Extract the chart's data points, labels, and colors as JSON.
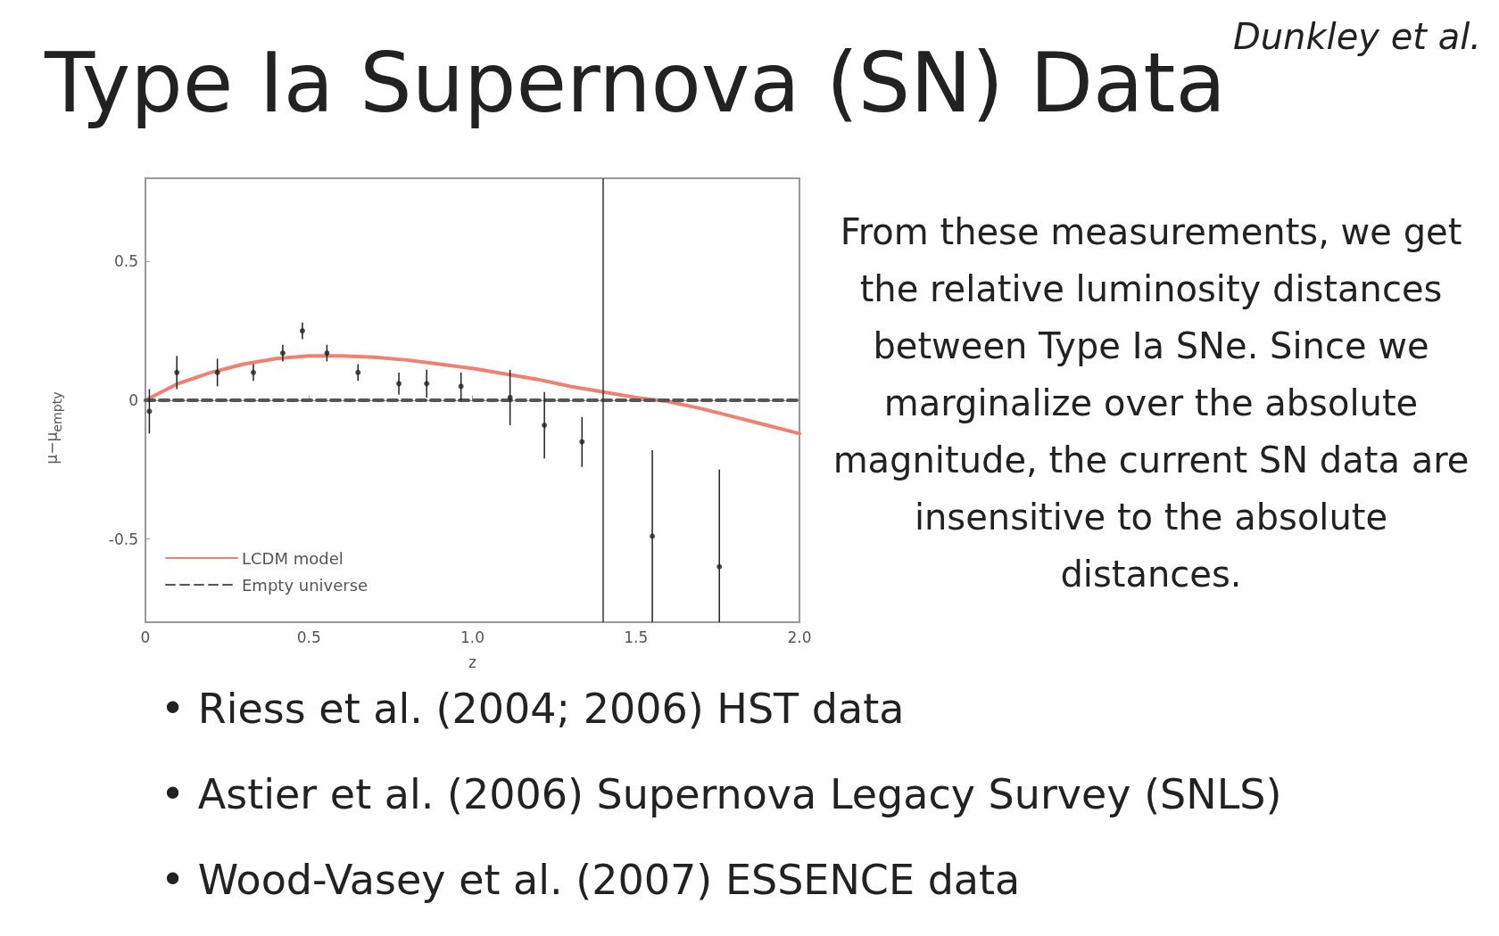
{
  "chart_data": {
    "type": "scatter",
    "title": "Type Ia Supernova (SN) Data",
    "xlabel": "z",
    "ylabel": "μ−μ$_{empty}$",
    "annotations": [
      "Dunkley et al.",
      "From these measurements, we get the relative luminosity distances between Type Ia SNe. Since we marginalize over the absolute magnitude, the current SN data are insensitive to the absolute distances.",
      "• Riess et al. (2004; 2006) HST data",
      "• Astier et al. (2006) Supernova Legacy Survey (SNLS)",
      "• Wood-Vasey et al. (2007) ESSENCE data"
    ],
    "xlim": [
      0,
      2
    ],
    "ylim": [
      -0.8,
      0.8
    ],
    "xticks": [
      0,
      0.5,
      {
        "value": 1,
        "label": "1.0"
      },
      1.5,
      {
        "value": 2,
        "label": "2.0"
      }
    ],
    "yticks": [
      -0.5,
      0,
      0.5
    ],
    "marker": "circle",
    "legend": "bottom left",
    "ref_lines": [
      {
        "axis": "x",
        "value": 1.4,
        "color": "#333333"
      }
    ],
    "series": [
      {
        "color": "#222222",
        "x": [
          0.012,
          0.096,
          0.22,
          0.33,
          0.42,
          0.48,
          0.555,
          0.65,
          0.775,
          0.86,
          0.965,
          1.115,
          1.22,
          1.335,
          1.55,
          1.755
        ],
        "values": [
          -0.04,
          0.1,
          0.1,
          0.1,
          0.17,
          0.25,
          0.17,
          0.1,
          0.06,
          0.06,
          0.05,
          0.01,
          -0.09,
          -0.15,
          -0.49,
          -0.6
        ],
        "errors": [
          0.08,
          0.06,
          0.05,
          0.03,
          0.03,
          0.03,
          0.03,
          0.03,
          0.04,
          0.05,
          0.05,
          0.1,
          0.12,
          0.09,
          0.31,
          [
            -0.8,
            -0.25
          ]
        ]
      },
      {
        "type": "line",
        "name": "LCDM model",
        "color": "#f08070",
        "line_style": "solid",
        "marker": "none",
        "x": [
          0,
          0.1,
          0.2,
          0.3,
          0.4,
          0.5,
          0.6,
          0.7,
          0.8,
          0.9,
          1.0,
          1.1,
          1.2,
          1.3,
          1.4,
          1.5,
          1.6,
          1.7,
          1.8,
          1.9,
          2.0
        ],
        "values": [
          0,
          0.06,
          0.1,
          0.13,
          0.15,
          0.16,
          0.16,
          0.155,
          0.145,
          0.13,
          0.115,
          0.095,
          0.075,
          0.05,
          0.03,
          0.01,
          -0.005,
          -0.03,
          -0.06,
          -0.09,
          -0.12
        ]
      },
      {
        "type": "line",
        "name": "Empty universe",
        "color": "#555555",
        "line_style": "dashed",
        "marker": "none",
        "x": [
          0,
          2
        ],
        "values": [
          0,
          0
        ]
      }
    ]
  }
}
